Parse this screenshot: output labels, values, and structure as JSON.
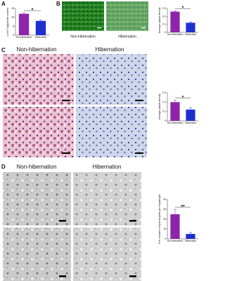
{
  "panels": [
    {
      "label": "A"
    },
    {
      "label": "B",
      "image_labels": [
        "Non-hibernation",
        "Hibernation"
      ]
    },
    {
      "label": "C",
      "image_labels": [
        "Non-hibernation",
        "Hibernation"
      ]
    },
    {
      "label": "D",
      "image_labels": [
        "Non-hibernation",
        "Hibernation"
      ]
    }
  ],
  "chart_data": [
    {
      "type": "bar",
      "y_label": "Liver Triglyceride content",
      "categories": [
        "Non-hibernation",
        "Hibernation"
      ],
      "values": [
        12,
        8
      ],
      "errors": [
        0.6,
        0.5
      ],
      "colors": [
        "#8e24aa",
        "#1e2fd0"
      ],
      "ylim": [
        0,
        15
      ],
      "yticks": [
        0,
        5,
        10,
        15
      ],
      "annotation": "*"
    },
    {
      "type": "bar",
      "y_label": "Average optical density",
      "categories": [
        "Non-hibernation",
        "Hibernation"
      ],
      "values": [
        0.26,
        0.12
      ],
      "errors": [
        0.01,
        0.01
      ],
      "colors": [
        "#8e24aa",
        "#1e2fd0"
      ],
      "ylim": [
        0,
        0.3
      ],
      "yticks": [
        0,
        0.1,
        0.2,
        0.3
      ],
      "annotation": "*"
    },
    {
      "type": "bar",
      "y_label": "Average optical density",
      "categories": [
        "Non-hibernation",
        "Hibernation"
      ],
      "values": [
        0.2,
        0.12
      ],
      "errors": [
        0.02,
        0.02
      ],
      "colors": [
        "#8e24aa",
        "#1e2fd0"
      ],
      "ylim": [
        0,
        0.3
      ],
      "yticks": [
        0,
        0.1,
        0.2,
        0.3
      ],
      "annotation": "*"
    },
    {
      "type": "bar",
      "y_label": "The numbers of lipid droplets per hepatocyte",
      "categories": [
        "Non-hibernation",
        "Hibernation"
      ],
      "values": [
        25,
        5
      ],
      "errors": [
        5,
        1.5
      ],
      "colors": [
        "#8e24aa",
        "#1e2fd0"
      ],
      "ylim": [
        0,
        40
      ],
      "yticks": [
        0,
        10,
        20,
        30,
        40
      ],
      "annotation": "**"
    }
  ]
}
